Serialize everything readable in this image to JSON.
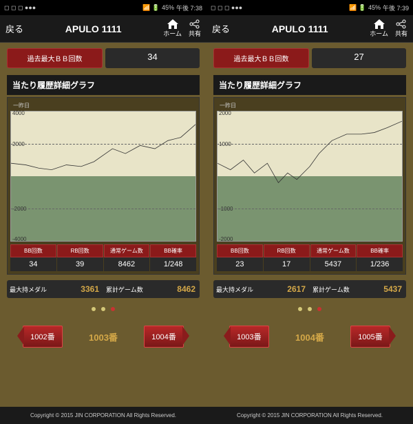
{
  "screens": [
    {
      "status": {
        "battery": "45%",
        "time": "午後 7:38"
      },
      "header": {
        "back": "戻る",
        "title": "APULO 1111",
        "home": "ホーム",
        "share": "共有"
      },
      "bb": {
        "label": "過去最大ＢＢ回数",
        "value": "34"
      },
      "chart": {
        "title": "当たり履歴詳細グラフ",
        "sub": "一昨日",
        "ylabels": [
          "4000",
          "2000",
          "-2000",
          "-4000"
        ],
        "ylim": [
          -4000,
          4000
        ],
        "line": [
          [
            0,
            800
          ],
          [
            8,
            700
          ],
          [
            15,
            500
          ],
          [
            22,
            400
          ],
          [
            30,
            700
          ],
          [
            38,
            600
          ],
          [
            45,
            900
          ],
          [
            55,
            1700
          ],
          [
            62,
            1400
          ],
          [
            70,
            1900
          ],
          [
            78,
            1700
          ],
          [
            85,
            2200
          ],
          [
            92,
            2400
          ],
          [
            100,
            3200
          ]
        ],
        "top_bg": "#e8e4c8",
        "bot_bg": "#7a9470",
        "line_color": "#333"
      },
      "stats": [
        {
          "hdr": "BB回数",
          "val": "34"
        },
        {
          "hdr": "RB回数",
          "val": "39"
        },
        {
          "hdr": "通常ゲーム数",
          "val": "8462"
        },
        {
          "hdr": "BB確率",
          "val": "1/248"
        }
      ],
      "summary": [
        {
          "label": "最大持メダル",
          "val": "3361"
        },
        {
          "label": "累計ゲーム数",
          "val": "8462"
        }
      ],
      "nav": {
        "prev": "1002番",
        "current": "1003番",
        "next": "1004番"
      },
      "dots_active": 2,
      "copyright": "Copyright © 2015 JIN CORPORATION All Rights Reserved."
    },
    {
      "status": {
        "battery": "45%",
        "time": "午後 7:39"
      },
      "header": {
        "back": "戻る",
        "title": "APULO 1111",
        "home": "ホーム",
        "share": "共有"
      },
      "bb": {
        "label": "過去最大ＢＢ回数",
        "value": "27"
      },
      "chart": {
        "title": "当たり履歴詳細グラフ",
        "sub": "一昨日",
        "ylabels": [
          "2000",
          "1000",
          "-1000",
          "-2000"
        ],
        "ylim": [
          -2000,
          2000
        ],
        "line": [
          [
            0,
            400
          ],
          [
            7,
            200
          ],
          [
            14,
            500
          ],
          [
            20,
            100
          ],
          [
            27,
            400
          ],
          [
            33,
            -200
          ],
          [
            38,
            100
          ],
          [
            43,
            -100
          ],
          [
            50,
            300
          ],
          [
            55,
            700
          ],
          [
            62,
            1100
          ],
          [
            70,
            1300
          ],
          [
            78,
            1300
          ],
          [
            85,
            1350
          ],
          [
            92,
            1500
          ],
          [
            100,
            1700
          ]
        ],
        "top_bg": "#e8e4c8",
        "bot_bg": "#7a9470",
        "line_color": "#333"
      },
      "stats": [
        {
          "hdr": "BB回数",
          "val": "23"
        },
        {
          "hdr": "RB回数",
          "val": "17"
        },
        {
          "hdr": "通常ゲーム数",
          "val": "5437"
        },
        {
          "hdr": "BB確率",
          "val": "1/236"
        }
      ],
      "summary": [
        {
          "label": "最大持メダル",
          "val": "2617"
        },
        {
          "label": "累計ゲーム数",
          "val": "5437"
        }
      ],
      "nav": {
        "prev": "1003番",
        "current": "1004番",
        "next": "1005番"
      },
      "dots_active": 2,
      "copyright": "Copyright © 2015 JIN CORPORATION All Rights Reserved."
    }
  ]
}
